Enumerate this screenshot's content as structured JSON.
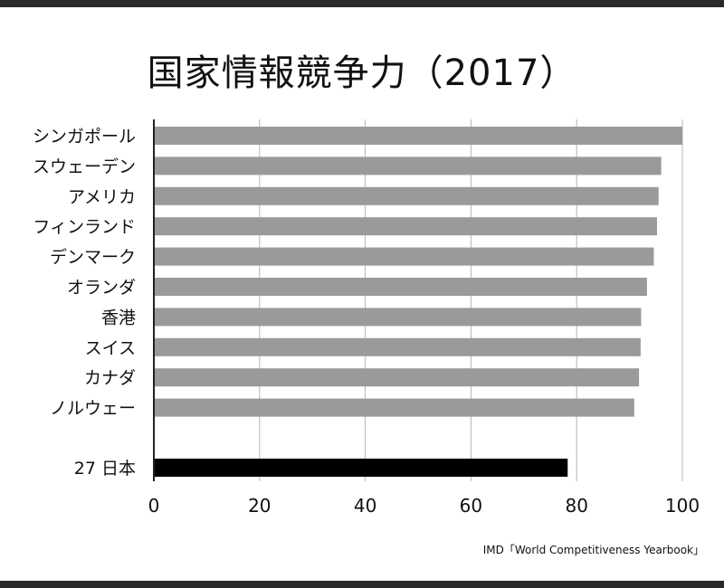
{
  "title": "国家情報競争力（2017）",
  "source": "IMD「World Competitiveness Yearbook」",
  "colors": {
    "bar": "#9a9a9a",
    "highlight": "#000000",
    "grid": "#b5b5b5",
    "axis": "#222222"
  },
  "chart_data": {
    "type": "bar",
    "orientation": "horizontal",
    "title": "国家情報競争力（2017）",
    "xlim": [
      0,
      100
    ],
    "xticks": [
      0,
      20,
      40,
      60,
      80,
      100
    ],
    "grid": true,
    "categories": [
      "シンガポール",
      "スウェーデン",
      "アメリカ",
      "フィンランド",
      "デンマーク",
      "オランダ",
      "香港",
      "スイス",
      "カナダ",
      "ノルウェー",
      "27 日本"
    ],
    "values": [
      100,
      96,
      95.5,
      95.2,
      94.6,
      93.3,
      92.2,
      92.1,
      91.8,
      90.9,
      78.3
    ],
    "highlight": "27 日本"
  }
}
